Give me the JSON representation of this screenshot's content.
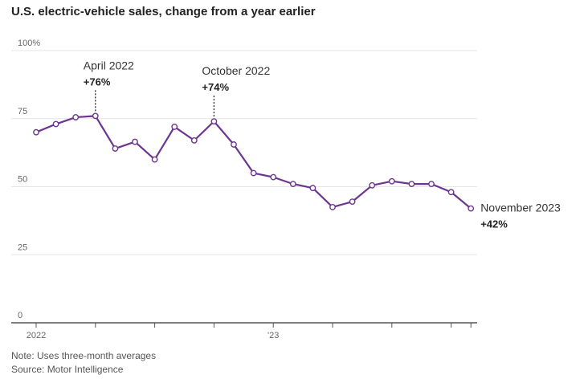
{
  "chart_data": {
    "type": "line",
    "title": "U.S. electric-vehicle sales, change from a year earlier",
    "xlabel": "",
    "ylabel": "",
    "ylim": [
      0,
      100
    ],
    "yticks": [
      "100%",
      "75",
      "50",
      "25",
      "0"
    ],
    "xtick_labels": [
      {
        "label": "2022",
        "index": 0
      },
      {
        "label": "'23",
        "index": 12
      }
    ],
    "grid": true,
    "color": "#6b3590",
    "series": [
      {
        "x": [
          "2022-01",
          "2022-02",
          "2022-03",
          "2022-04",
          "2022-05",
          "2022-06",
          "2022-07",
          "2022-08",
          "2022-09",
          "2022-10",
          "2022-11",
          "2022-12",
          "2023-01",
          "2023-02",
          "2023-03",
          "2023-04",
          "2023-05",
          "2023-06",
          "2023-07",
          "2023-08",
          "2023-09",
          "2023-10",
          "2023-11"
        ],
        "values": [
          70,
          73,
          75.5,
          76,
          64,
          66.5,
          60,
          72,
          67,
          74,
          65.5,
          55,
          53.5,
          51,
          49.5,
          42.5,
          44.5,
          50.5,
          52,
          51,
          51,
          48,
          42
        ]
      }
    ],
    "annotations": [
      {
        "label": "April 2022",
        "value": "+76%",
        "index": 3
      },
      {
        "label": "October 2022",
        "value": "+74%",
        "index": 9
      },
      {
        "label": "November 2023",
        "value": "+42%",
        "index": 22
      }
    ]
  },
  "notes": {
    "note": "Note: Uses three-month averages",
    "source": "Source: Motor Intelligence"
  }
}
